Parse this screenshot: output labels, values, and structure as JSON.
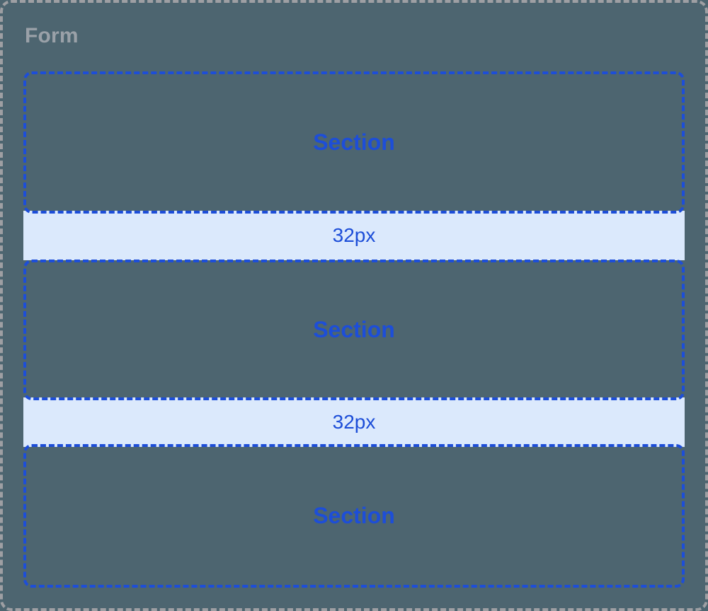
{
  "diagram": {
    "form_label": "Form",
    "sections": [
      {
        "label": "Section"
      },
      {
        "label": "Section"
      },
      {
        "label": "Section"
      }
    ],
    "spacers": [
      {
        "label": "32px"
      },
      {
        "label": "32px"
      }
    ]
  },
  "colors": {
    "background": "#4d6570",
    "form_outline": "#9e9fa3",
    "form_label_text": "#9aa1a8",
    "section_blue": "#1d4ed8",
    "spacer_background": "#dbe9fc",
    "spacer_text": "#1d4ed8"
  }
}
